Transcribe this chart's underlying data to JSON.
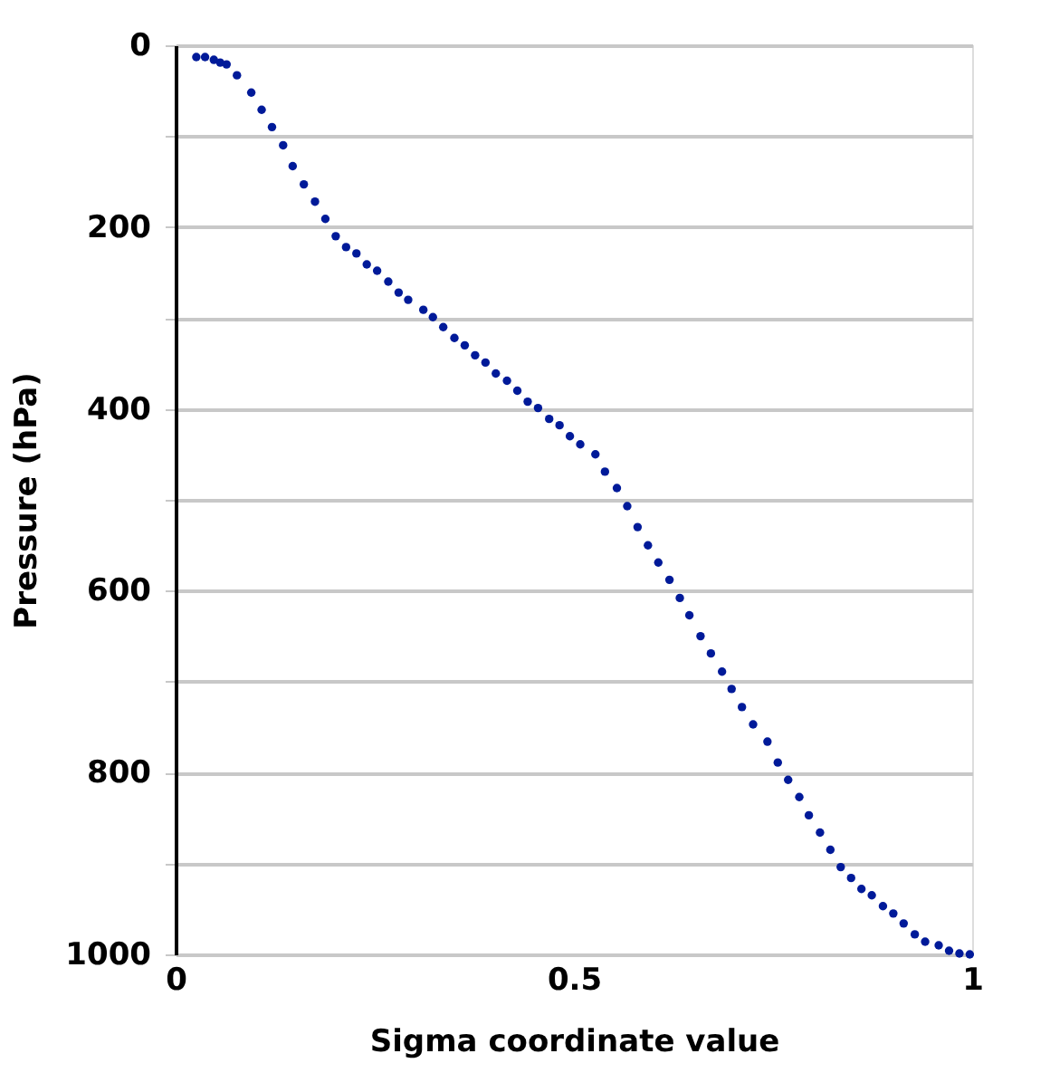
{
  "chart_data": {
    "type": "scatter",
    "xlabel": "Sigma coordinate value",
    "ylabel": "Pressure (hPa)",
    "x": [
      0.026,
      0.037,
      0.048,
      0.056,
      0.064,
      0.077,
      0.095,
      0.108,
      0.121,
      0.135,
      0.147,
      0.161,
      0.175,
      0.188,
      0.201,
      0.214,
      0.227,
      0.24,
      0.253,
      0.267,
      0.28,
      0.292,
      0.311,
      0.323,
      0.336,
      0.35,
      0.363,
      0.376,
      0.389,
      0.402,
      0.416,
      0.429,
      0.442,
      0.455,
      0.469,
      0.482,
      0.495,
      0.508,
      0.527,
      0.539,
      0.554,
      0.567,
      0.58,
      0.593,
      0.606,
      0.62,
      0.633,
      0.645,
      0.659,
      0.672,
      0.686,
      0.698,
      0.711,
      0.725,
      0.743,
      0.756,
      0.769,
      0.783,
      0.795,
      0.809,
      0.822,
      0.835,
      0.848,
      0.861,
      0.874,
      0.888,
      0.901,
      0.914,
      0.928,
      0.941,
      0.958,
      0.971,
      0.984,
      0.997
    ],
    "series": [
      {
        "color": "#001a99",
        "values": [
          13,
          13,
          16,
          19,
          21,
          33,
          52,
          71,
          90,
          110,
          133,
          153,
          172,
          191,
          210,
          222,
          229,
          241,
          248,
          260,
          272,
          280,
          291,
          299,
          310,
          322,
          330,
          341,
          349,
          361,
          369,
          380,
          392,
          399,
          411,
          418,
          430,
          439,
          450,
          469,
          487,
          507,
          530,
          550,
          569,
          588,
          608,
          627,
          650,
          669,
          689,
          708,
          728,
          747,
          766,
          789,
          808,
          827,
          847,
          866,
          885,
          904,
          916,
          928,
          935,
          947,
          955,
          966,
          978,
          986,
          990,
          996,
          999,
          1000
        ]
      }
    ],
    "xlim": [
      0,
      1
    ],
    "xticks": [
      0,
      0.5,
      1
    ],
    "ylim": [
      1000,
      0
    ],
    "yticks": [
      0,
      {
        "value": 100,
        "label": null
      },
      200,
      {
        "value": 300,
        "label": null
      },
      400,
      {
        "value": 500,
        "label": null
      },
      600,
      {
        "value": 700,
        "label": null
      },
      800,
      {
        "value": 900,
        "label": null
      },
      1000
    ],
    "grid": "y",
    "marker": "circle"
  }
}
